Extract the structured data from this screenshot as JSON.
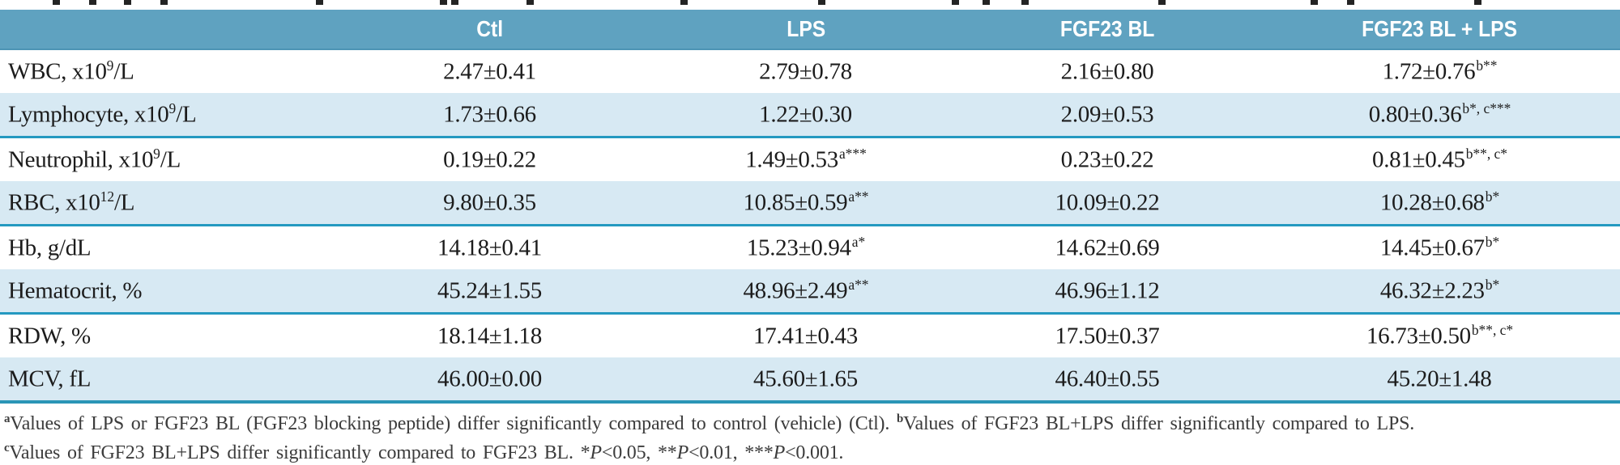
{
  "colors": {
    "header_bg": "#5fa2c0",
    "row_shaded_bg": "#d7e9f3",
    "group_separator": "#2499c0",
    "table_bottom_border": "#2b95b6",
    "header_text": "#ffffff",
    "body_text": "#1c1c1c",
    "footnote_text": "#3c3c3c"
  },
  "table": {
    "columns": [
      "",
      "Ctl",
      "LPS",
      "FGF23 BL",
      "FGF23 BL + LPS"
    ],
    "rows": [
      {
        "label_pre": "WBC, x10",
        "label_sup": "9",
        "label_post": "/L",
        "cells": [
          {
            "value": "2.47±0.41",
            "sup": ""
          },
          {
            "value": "2.79±0.78",
            "sup": ""
          },
          {
            "value": "2.16±0.80",
            "sup": ""
          },
          {
            "value": "1.72±0.76",
            "sup": "b**"
          }
        ]
      },
      {
        "label_pre": "Lymphocyte, x10",
        "label_sup": "9",
        "label_post": "/L",
        "cells": [
          {
            "value": "1.73±0.66",
            "sup": ""
          },
          {
            "value": "1.22±0.30",
            "sup": ""
          },
          {
            "value": "2.09±0.53",
            "sup": ""
          },
          {
            "value": "0.80±0.36",
            "sup": "b*, c***"
          }
        ]
      },
      {
        "label_pre": "Neutrophil, x10",
        "label_sup": "9",
        "label_post": "/L",
        "cells": [
          {
            "value": "0.19±0.22",
            "sup": ""
          },
          {
            "value": "1.49±0.53",
            "sup": "a***"
          },
          {
            "value": "0.23±0.22",
            "sup": ""
          },
          {
            "value": "0.81±0.45",
            "sup": "b**, c*"
          }
        ]
      },
      {
        "label_pre": "RBC, x10",
        "label_sup": "12",
        "label_post": "/L",
        "cells": [
          {
            "value": "9.80±0.35",
            "sup": ""
          },
          {
            "value": "10.85±0.59",
            "sup": "a**"
          },
          {
            "value": "10.09±0.22",
            "sup": ""
          },
          {
            "value": "10.28±0.68",
            "sup": "b*"
          }
        ]
      },
      {
        "label_pre": "Hb, g/dL",
        "label_sup": "",
        "label_post": "",
        "cells": [
          {
            "value": "14.18±0.41",
            "sup": ""
          },
          {
            "value": "15.23±0.94",
            "sup": "a*"
          },
          {
            "value": "14.62±0.69",
            "sup": ""
          },
          {
            "value": "14.45±0.67",
            "sup": "b*"
          }
        ]
      },
      {
        "label_pre": "Hematocrit, %",
        "label_sup": "",
        "label_post": "",
        "cells": [
          {
            "value": "45.24±1.55",
            "sup": ""
          },
          {
            "value": "48.96±2.49",
            "sup": "a**"
          },
          {
            "value": "46.96±1.12",
            "sup": ""
          },
          {
            "value": "46.32±2.23",
            "sup": "b*"
          }
        ]
      },
      {
        "label_pre": "RDW, %",
        "label_sup": "",
        "label_post": "",
        "cells": [
          {
            "value": "18.14±1.18",
            "sup": ""
          },
          {
            "value": "17.41±0.43",
            "sup": ""
          },
          {
            "value": "17.50±0.37",
            "sup": ""
          },
          {
            "value": "16.73±0.50",
            "sup": "b**, c*"
          }
        ]
      },
      {
        "label_pre": "MCV, fL",
        "label_sup": "",
        "label_post": "",
        "cells": [
          {
            "value": "46.00±0.00",
            "sup": ""
          },
          {
            "value": "45.60±1.65",
            "sup": ""
          },
          {
            "value": "46.40±0.55",
            "sup": ""
          },
          {
            "value": "45.20±1.48",
            "sup": ""
          }
        ]
      }
    ]
  },
  "footnotes": {
    "lines": [
      [
        {
          "style": "sup",
          "t": "a"
        },
        {
          "style": "n",
          "t": "Values of LPS or FGF23 BL (FGF23 blocking peptide) differ significantly compared to control (vehicle) (Ctl). "
        },
        {
          "style": "sup",
          "t": "b"
        },
        {
          "style": "n",
          "t": "Values of FGF23 BL+LPS differ significantly compared to LPS."
        }
      ],
      [
        {
          "style": "sup",
          "t": "c"
        },
        {
          "style": "n",
          "t": "Values of FGF23 BL+LPS differ significantly compared to FGF23 BL. *"
        },
        {
          "style": "i",
          "t": "P"
        },
        {
          "style": "n",
          "t": "<0.05, **"
        },
        {
          "style": "i",
          "t": "P"
        },
        {
          "style": "n",
          "t": "<0.01, ***"
        },
        {
          "style": "i",
          "t": "P"
        },
        {
          "style": "n",
          "t": "<0.001."
        }
      ]
    ]
  }
}
